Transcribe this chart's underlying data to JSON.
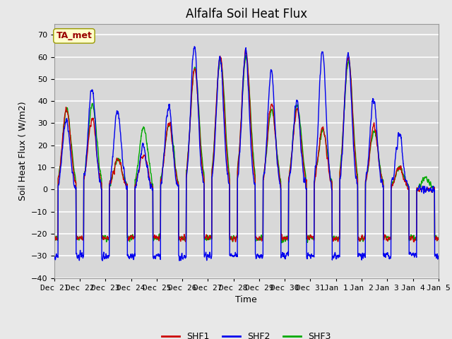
{
  "title": "Alfalfa Soil Heat Flux",
  "ylabel": "Soil Heat Flux ( W/m2)",
  "xlabel": "Time",
  "ylim": [
    -40,
    75
  ],
  "yticks": [
    -40,
    -30,
    -20,
    -10,
    0,
    10,
    20,
    30,
    40,
    50,
    60,
    70
  ],
  "colors": {
    "SHF1": "#cc0000",
    "SHF2": "#0000ee",
    "SHF3": "#00aa00"
  },
  "legend_label": "TA_met",
  "legend_box_facecolor": "#ffffcc",
  "legend_box_edgecolor": "#999900",
  "fig_facecolor": "#e8e8e8",
  "ax_facecolor": "#d8d8d8",
  "grid_color": "#ffffff",
  "title_fontsize": 12,
  "axis_label_fontsize": 9,
  "tick_fontsize": 8,
  "line_width": 1.0,
  "num_days": 15,
  "points_per_day": 144,
  "x_tick_labels": [
    "Dec 21",
    "Dec 22",
    "Dec 23",
    "Dec 24",
    "Dec 25",
    "Dec 26",
    "Dec 27",
    "Dec 28",
    "Dec 29",
    "Dec 30",
    "Dec 31",
    "Jan 1",
    "Jan 2",
    "Jan 3",
    "Jan 4",
    "Jan 5"
  ],
  "day_peaks_shf1": [
    36,
    32,
    14,
    16,
    30,
    55,
    60,
    62,
    38,
    36,
    28,
    60,
    28,
    10,
    0,
    0
  ],
  "day_peaks_shf2": [
    32,
    46,
    35,
    20,
    38,
    65,
    60,
    62,
    53,
    40,
    63,
    62,
    40,
    25,
    0,
    0
  ],
  "day_peaks_shf3": [
    36,
    38,
    14,
    28,
    30,
    55,
    59,
    60,
    36,
    38,
    27,
    58,
    27,
    10,
    5,
    5
  ],
  "night_floor": -22,
  "night_floor_shf2": -30
}
